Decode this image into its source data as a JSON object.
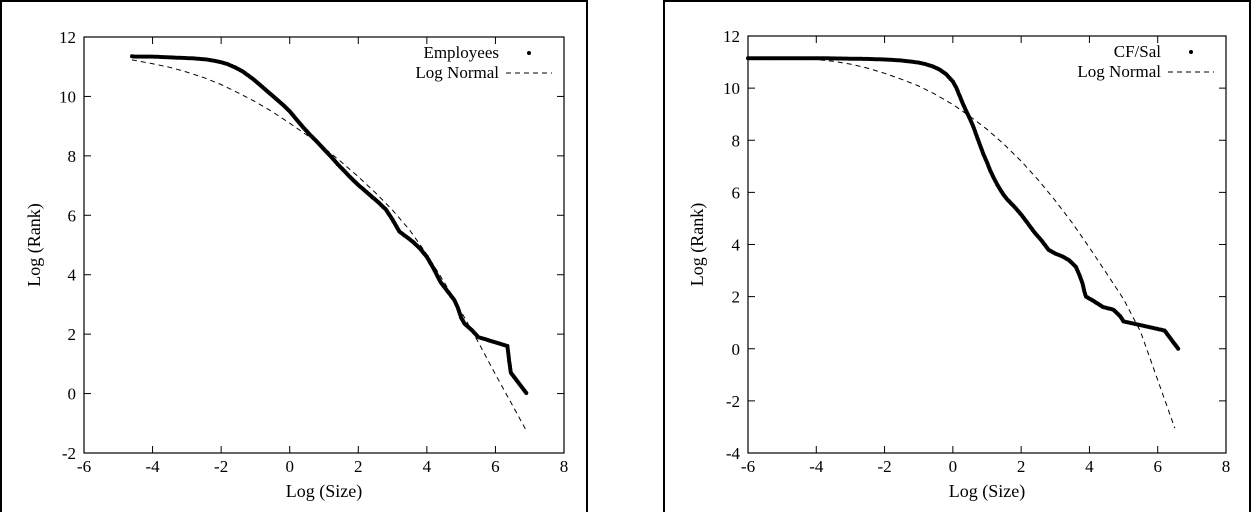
{
  "chart_data": [
    {
      "type": "scatter",
      "xlabel": "Log (Size)",
      "ylabel": "Log (Rank)",
      "xlim": [
        -6,
        8
      ],
      "ylim": [
        -2,
        12
      ],
      "xticks": [
        -6,
        -4,
        -2,
        0,
        2,
        4,
        6,
        8
      ],
      "yticks": [
        -2,
        0,
        2,
        4,
        6,
        8,
        10,
        12
      ],
      "grid": false,
      "legend_position": "top-right",
      "series": [
        {
          "name": "Employees",
          "style": "points",
          "points": [
            [
              -4.6,
              11.35
            ],
            [
              -4.5,
              11.34
            ],
            [
              -4.0,
              11.34
            ],
            [
              -3.8,
              11.33
            ],
            [
              -3.6,
              11.32
            ],
            [
              -3.4,
              11.31
            ],
            [
              -3.2,
              11.3
            ],
            [
              -3.0,
              11.29
            ],
            [
              -2.8,
              11.28
            ],
            [
              -2.6,
              11.26
            ],
            [
              -2.4,
              11.24
            ],
            [
              -2.2,
              11.2
            ],
            [
              -2.0,
              11.15
            ],
            [
              -1.8,
              11.08
            ],
            [
              -1.6,
              10.98
            ],
            [
              -1.4,
              10.86
            ],
            [
              -1.2,
              10.7
            ],
            [
              -1.0,
              10.52
            ],
            [
              -0.8,
              10.32
            ],
            [
              -0.6,
              10.12
            ],
            [
              -0.4,
              9.92
            ],
            [
              -0.2,
              9.72
            ],
            [
              0.0,
              9.5
            ],
            [
              0.2,
              9.22
            ],
            [
              0.4,
              8.95
            ],
            [
              0.6,
              8.7
            ],
            [
              0.8,
              8.47
            ],
            [
              1.0,
              8.22
            ],
            [
              1.2,
              7.98
            ],
            [
              1.4,
              7.72
            ],
            [
              1.6,
              7.48
            ],
            [
              1.8,
              7.24
            ],
            [
              2.0,
              7.02
            ],
            [
              2.2,
              6.82
            ],
            [
              2.4,
              6.62
            ],
            [
              2.6,
              6.42
            ],
            [
              2.8,
              6.2
            ],
            [
              3.0,
              5.85
            ],
            [
              3.2,
              5.45
            ],
            [
              3.4,
              5.28
            ],
            [
              3.6,
              5.1
            ],
            [
              3.8,
              4.88
            ],
            [
              4.0,
              4.6
            ],
            [
              4.2,
              4.2
            ],
            [
              4.4,
              3.75
            ],
            [
              4.6,
              3.45
            ],
            [
              4.8,
              3.15
            ],
            [
              4.9,
              2.9
            ],
            [
              5.0,
              2.55
            ],
            [
              5.1,
              2.35
            ],
            [
              5.3,
              2.15
            ],
            [
              5.5,
              1.9
            ],
            [
              6.35,
              1.6
            ],
            [
              6.4,
              1.1
            ],
            [
              6.45,
              0.7
            ],
            [
              6.9,
              0.02
            ]
          ]
        },
        {
          "name": "Log Normal",
          "style": "dashed",
          "points": [
            [
              -4.6,
              11.23
            ],
            [
              -4.0,
              11.1
            ],
            [
              -3.5,
              10.98
            ],
            [
              -3.0,
              10.82
            ],
            [
              -2.5,
              10.63
            ],
            [
              -2.0,
              10.4
            ],
            [
              -1.5,
              10.12
            ],
            [
              -1.0,
              9.82
            ],
            [
              -0.5,
              9.48
            ],
            [
              0.0,
              9.1
            ],
            [
              0.5,
              8.7
            ],
            [
              1.0,
              8.27
            ],
            [
              1.5,
              7.8
            ],
            [
              2.0,
              7.3
            ],
            [
              2.5,
              6.76
            ],
            [
              3.0,
              6.17
            ],
            [
              3.5,
              5.5
            ],
            [
              4.0,
              4.68
            ],
            [
              4.5,
              3.76
            ],
            [
              5.0,
              2.76
            ],
            [
              5.5,
              1.73
            ],
            [
              6.0,
              0.65
            ],
            [
              6.5,
              -0.4
            ],
            [
              6.9,
              -1.25
            ]
          ]
        }
      ]
    },
    {
      "type": "scatter",
      "xlabel": "Log (Size)",
      "ylabel": "Log (Rank)",
      "xlim": [
        -6,
        8
      ],
      "ylim": [
        -4,
        12
      ],
      "xticks": [
        -6,
        -4,
        -2,
        0,
        2,
        4,
        6,
        8
      ],
      "yticks": [
        -4,
        -2,
        0,
        2,
        4,
        6,
        8,
        10,
        12
      ],
      "grid": false,
      "legend_position": "top-right",
      "series": [
        {
          "name": "CF/Sal",
          "style": "points",
          "points": [
            [
              -6.0,
              11.15
            ],
            [
              -5.5,
              11.15
            ],
            [
              -5.0,
              11.15
            ],
            [
              -4.5,
              11.15
            ],
            [
              -4.0,
              11.15
            ],
            [
              -3.5,
              11.14
            ],
            [
              -3.0,
              11.13
            ],
            [
              -2.5,
              11.12
            ],
            [
              -2.0,
              11.1
            ],
            [
              -1.5,
              11.06
            ],
            [
              -1.0,
              10.98
            ],
            [
              -0.8,
              10.92
            ],
            [
              -0.6,
              10.84
            ],
            [
              -0.4,
              10.72
            ],
            [
              -0.2,
              10.54
            ],
            [
              0.0,
              10.25
            ],
            [
              0.1,
              10.02
            ],
            [
              0.2,
              9.7
            ],
            [
              0.3,
              9.38
            ],
            [
              0.4,
              9.1
            ],
            [
              0.5,
              8.82
            ],
            [
              0.6,
              8.52
            ],
            [
              0.7,
              8.15
            ],
            [
              0.8,
              7.8
            ],
            [
              0.9,
              7.45
            ],
            [
              1.0,
              7.15
            ],
            [
              1.1,
              6.82
            ],
            [
              1.2,
              6.55
            ],
            [
              1.3,
              6.3
            ],
            [
              1.4,
              6.08
            ],
            [
              1.5,
              5.88
            ],
            [
              1.6,
              5.72
            ],
            [
              1.8,
              5.45
            ],
            [
              2.0,
              5.15
            ],
            [
              2.2,
              4.8
            ],
            [
              2.4,
              4.45
            ],
            [
              2.6,
              4.15
            ],
            [
              2.8,
              3.8
            ],
            [
              3.0,
              3.65
            ],
            [
              3.2,
              3.55
            ],
            [
              3.4,
              3.4
            ],
            [
              3.6,
              3.15
            ],
            [
              3.7,
              2.85
            ],
            [
              3.8,
              2.5
            ],
            [
              3.85,
              2.2
            ],
            [
              3.9,
              2.0
            ],
            [
              4.1,
              1.85
            ],
            [
              4.4,
              1.6
            ],
            [
              4.7,
              1.5
            ],
            [
              4.9,
              1.25
            ],
            [
              5.0,
              1.05
            ],
            [
              6.2,
              0.7
            ],
            [
              6.6,
              0.0
            ]
          ]
        },
        {
          "name": "Log Normal",
          "style": "dashed",
          "points": [
            [
              -6.0,
              11.15
            ],
            [
              -5.0,
              11.13
            ],
            [
              -4.0,
              11.1
            ],
            [
              -3.5,
              11.03
            ],
            [
              -3.0,
              10.92
            ],
            [
              -2.5,
              10.77
            ],
            [
              -2.0,
              10.57
            ],
            [
              -1.5,
              10.34
            ],
            [
              -1.0,
              10.08
            ],
            [
              -0.5,
              9.75
            ],
            [
              0.0,
              9.37
            ],
            [
              0.5,
              8.92
            ],
            [
              1.0,
              8.42
            ],
            [
              1.5,
              7.84
            ],
            [
              2.0,
              7.2
            ],
            [
              2.5,
              6.48
            ],
            [
              3.0,
              5.68
            ],
            [
              3.5,
              4.82
            ],
            [
              4.0,
              3.88
            ],
            [
              4.5,
              2.9
            ],
            [
              5.0,
              1.9
            ],
            [
              5.5,
              0.65
            ],
            [
              6.0,
              -1.2
            ],
            [
              6.5,
              -3.05
            ]
          ]
        }
      ]
    }
  ]
}
